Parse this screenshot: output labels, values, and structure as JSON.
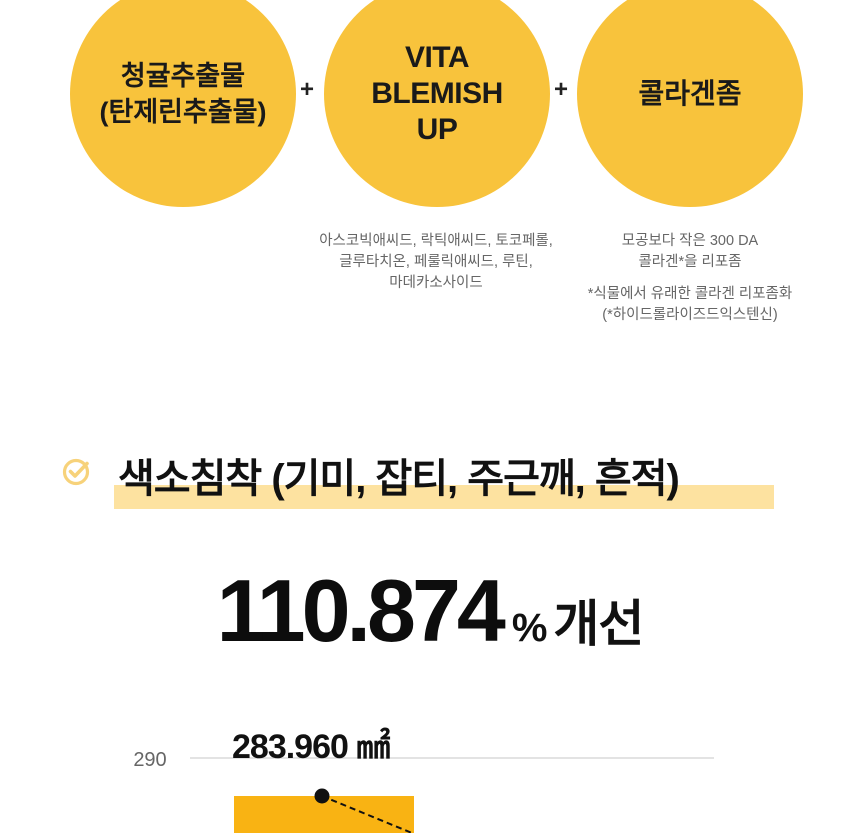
{
  "ingredients": [
    {
      "name": "청귤추출물\n(탄제린추출물)"
    },
    {
      "name": "VITA\nBLEMISH\nUP",
      "description": "아스코빅애씨드, 락틱애씨드, 토코페롤,\n글루타치온, 페룰릭애씨드, 루틴,\n마데카소사이드"
    },
    {
      "name": "콜라겐좀",
      "description": "모공보다 작은 300 DA\n콜라겐*을 리포좀",
      "footnote": "*식물에서 유래한 콜라겐 리포좀화\n(*하이드롤라이즈드익스텐신)"
    }
  ],
  "plus_sign": "+",
  "section": {
    "heading": "색소침착 (기미, 잡티, 주근깨, 흔적)",
    "improvement_value": "110.874",
    "improvement_unit": "%",
    "improvement_label": "개선"
  },
  "colors": {
    "accent": "#f8c33c",
    "highlight": "#fde2a0",
    "bar": "#f9b313",
    "check_icon": "#f7d27a"
  },
  "chart_data": {
    "type": "bar",
    "ytick_labels": [
      "290"
    ],
    "series": [
      {
        "values": [
          283.96
        ],
        "data_labels": [
          "283.960 ㎟"
        ]
      }
    ],
    "trend_line": "dashed",
    "grid": true
  }
}
